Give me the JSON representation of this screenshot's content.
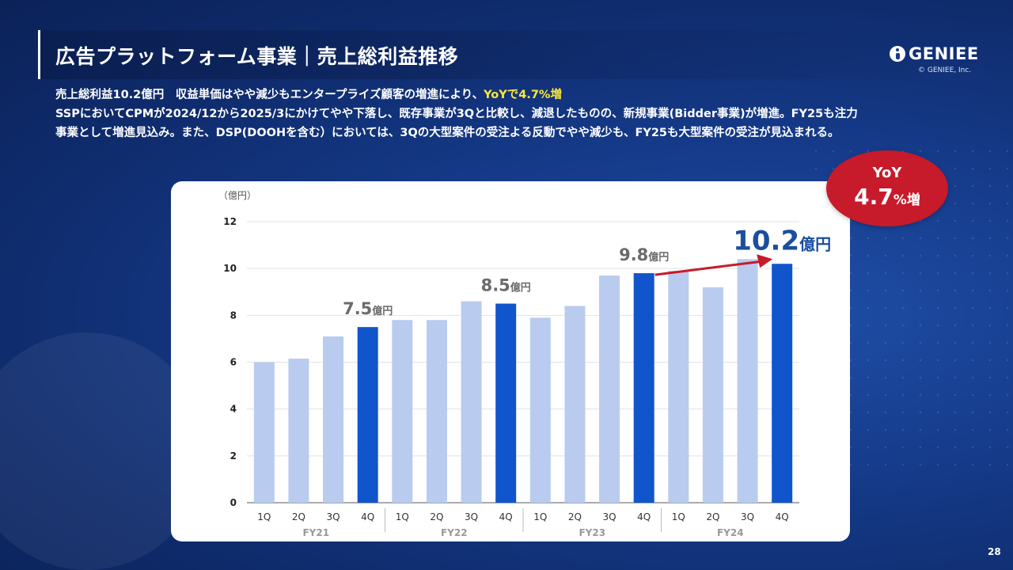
{
  "header": {
    "title": "広告プラットフォーム事業｜売上総利益推移",
    "logo_text": "GENIEE",
    "copyright": "© GENIEE, Inc."
  },
  "description": {
    "line1_main": "売上総利益10.2億円　収益単価はやや減少もエンタープライズ顧客の増進により、",
    "line1_highlight": "YoYで4.7%増",
    "line2": "SSPにおいてCPMが2024/12から2025/3にかけてやや下落し、既存事業が3Qと比較し、減退したものの、新規事業(Bidder事業)が増進。FY25も注力",
    "line3": "事業として増進見込み。また、DSP(DOOHを含む）においては、3Qの大型案件の受注よる反動でやや減少も、FY25も大型案件の受注が見込まれる。"
  },
  "yoy_badge": {
    "label": "YoY",
    "value": "4.7",
    "unit": "%増",
    "color": "#c71a2b"
  },
  "page_number": "28",
  "colors": {
    "bar_light": "#b9cbef",
    "bar_dark": "#1155cc",
    "annotation_gray": "#6b6b6b",
    "big_value": "#1a4e9e",
    "arrow": "#c71a2b"
  },
  "chart_data": {
    "type": "bar",
    "ylabel": "（億円）",
    "ylim": [
      0,
      12
    ],
    "yticks": [
      "0",
      "2",
      "4",
      "6",
      "8",
      "10",
      "12"
    ],
    "grid": true,
    "categories": [
      "1Q",
      "2Q",
      "3Q",
      "4Q",
      "1Q",
      "2Q",
      "3Q",
      "4Q",
      "1Q",
      "2Q",
      "3Q",
      "4Q",
      "1Q",
      "2Q",
      "3Q",
      "4Q"
    ],
    "groups": [
      "FY21",
      "FY22",
      "FY23",
      "FY24"
    ],
    "values": [
      6.0,
      6.15,
      7.1,
      7.5,
      7.8,
      7.8,
      8.6,
      8.5,
      7.9,
      8.4,
      9.7,
      9.8,
      9.9,
      9.2,
      10.4,
      10.2
    ],
    "highlight": [
      false,
      false,
      false,
      true,
      false,
      false,
      false,
      true,
      false,
      false,
      false,
      true,
      false,
      false,
      false,
      true
    ],
    "annotations": [
      {
        "index": 3,
        "value": "7.5",
        "unit": "億円"
      },
      {
        "index": 7,
        "value": "8.5",
        "unit": "億円"
      },
      {
        "index": 11,
        "value": "9.8",
        "unit": "億円"
      },
      {
        "index": 15,
        "value": "10.2",
        "unit": "億円"
      }
    ]
  }
}
